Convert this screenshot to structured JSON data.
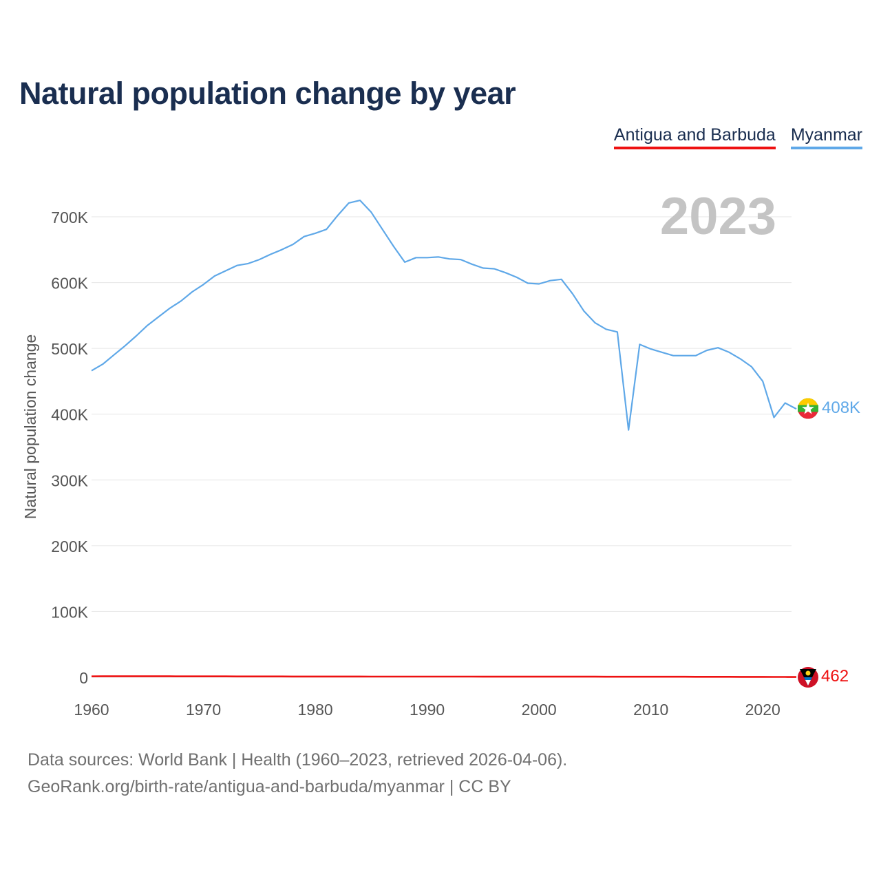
{
  "title": "Natural population change by year",
  "legend": [
    {
      "label": "Antigua and Barbuda",
      "color": "#ee1111"
    },
    {
      "label": "Myanmar",
      "color": "#5fa8e8"
    }
  ],
  "year_watermark": "2023",
  "end_labels": {
    "myanmar": "408K",
    "antigua": "462"
  },
  "footer": {
    "line1": "Data sources: World Bank | Health (1960–2023, retrieved 2026-04-06).",
    "line2": "GeoRank.org/birth-rate/antigua-and-barbuda/myanmar | CC BY"
  },
  "chart_data": {
    "type": "line",
    "title": "Natural population change by year",
    "ylabel": "Natural population change",
    "xlabel": "",
    "xlim": [
      1960,
      2023
    ],
    "ylim": [
      0,
      700000
    ],
    "x_ticks": [
      1960,
      1970,
      1980,
      1990,
      2000,
      2010,
      2020
    ],
    "y_ticks": [
      0,
      100000,
      200000,
      300000,
      400000,
      500000,
      600000,
      700000
    ],
    "y_tick_labels": [
      "0",
      "100K",
      "200K",
      "300K",
      "400K",
      "500K",
      "600K",
      "700K"
    ],
    "x": [
      1960,
      1961,
      1962,
      1963,
      1964,
      1965,
      1966,
      1967,
      1968,
      1969,
      1970,
      1971,
      1972,
      1973,
      1974,
      1975,
      1976,
      1977,
      1978,
      1979,
      1980,
      1981,
      1982,
      1983,
      1984,
      1985,
      1986,
      1987,
      1988,
      1989,
      1990,
      1991,
      1992,
      1993,
      1994,
      1995,
      1996,
      1997,
      1998,
      1999,
      2000,
      2001,
      2002,
      2003,
      2004,
      2005,
      2006,
      2007,
      2008,
      2009,
      2010,
      2011,
      2012,
      2013,
      2014,
      2015,
      2016,
      2017,
      2018,
      2019,
      2020,
      2021,
      2022,
      2023
    ],
    "series": [
      {
        "name": "Myanmar",
        "color": "#5fa8e8",
        "values": [
          466000,
          476000,
          490000,
          504000,
          519000,
          535000,
          548000,
          561000,
          572000,
          586000,
          597000,
          610000,
          618000,
          626000,
          629000,
          635000,
          643000,
          650000,
          658000,
          670000,
          675000,
          681000,
          702000,
          721000,
          725000,
          707000,
          681000,
          655000,
          631000,
          638000,
          638000,
          639000,
          636000,
          635000,
          628000,
          622000,
          621000,
          615000,
          608000,
          599000,
          598000,
          603000,
          605000,
          583000,
          557000,
          539000,
          529000,
          525000,
          376000,
          506000,
          499000,
          494000,
          489000,
          489000,
          489000,
          497000,
          501000,
          494000,
          484000,
          472000,
          450000,
          395000,
          417000,
          408000
        ]
      },
      {
        "name": "Antigua and Barbuda",
        "color": "#ee1111",
        "values": [
          1400,
          1420,
          1440,
          1450,
          1450,
          1460,
          1450,
          1430,
          1400,
          1380,
          1360,
          1340,
          1320,
          1300,
          1280,
          1260,
          1240,
          1220,
          1200,
          1180,
          1160,
          1140,
          1120,
          1110,
          1100,
          1090,
          1080,
          1070,
          1060,
          1050,
          1040,
          1030,
          1020,
          1010,
          1000,
          990,
          980,
          970,
          960,
          950,
          940,
          930,
          920,
          910,
          900,
          890,
          880,
          870,
          860,
          850,
          840,
          830,
          810,
          790,
          770,
          750,
          730,
          710,
          680,
          640,
          600,
          560,
          520,
          462
        ]
      }
    ]
  }
}
